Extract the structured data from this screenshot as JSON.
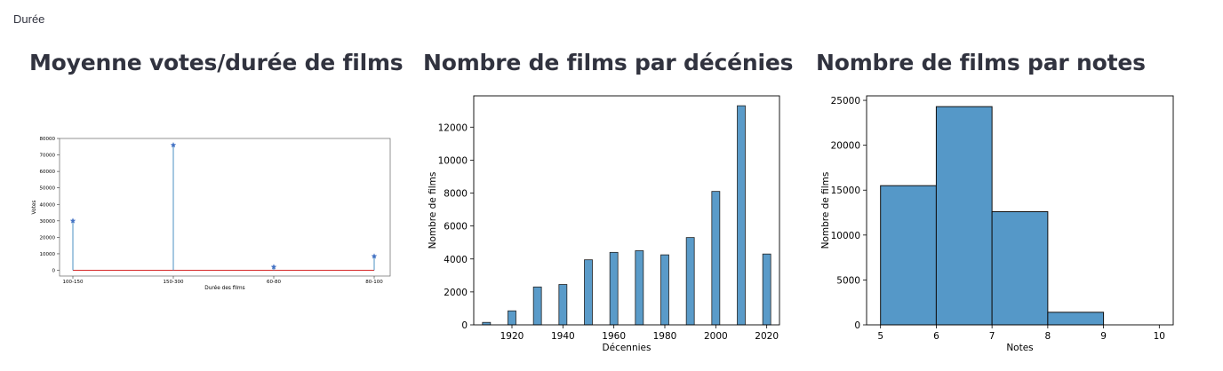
{
  "tab": {
    "label": "Durée"
  },
  "charts": [
    {
      "heading": "Moyenne votes/durée de films",
      "chart_data": {
        "type": "stem",
        "categories": [
          "100-150",
          "150-300",
          "60-80",
          "80-100"
        ],
        "values": [
          30000,
          76000,
          2000,
          8500
        ],
        "xlabel": "Durée des films",
        "ylabel": "Votes",
        "ylim": [
          -3500,
          80000
        ],
        "yticks": [
          0,
          10000,
          20000,
          30000,
          40000,
          50000,
          60000,
          70000,
          80000
        ],
        "colors": {
          "stem": "#1f77b4",
          "baseline": "#d62728",
          "marker": "#4472c4"
        }
      }
    },
    {
      "heading": "Nombre de films par décénies",
      "chart_data": {
        "type": "bar",
        "x": [
          1910,
          1920,
          1930,
          1940,
          1950,
          1960,
          1970,
          1980,
          1990,
          2000,
          2010,
          2020
        ],
        "values": [
          150,
          850,
          2300,
          2450,
          3950,
          4400,
          4500,
          4250,
          5300,
          8100,
          13300,
          4300
        ],
        "xlabel": "Décennies",
        "ylabel": "Nombre de films",
        "xlim": [
          1905,
          2025
        ],
        "ylim": [
          0,
          13900
        ],
        "xticks": [
          1920,
          1940,
          1960,
          1980,
          2000,
          2020
        ],
        "yticks": [
          0,
          2000,
          4000,
          6000,
          8000,
          10000,
          12000
        ],
        "colors": {
          "bar": "#5a9bc9"
        }
      }
    },
    {
      "heading": "Nombre de films par notes",
      "chart_data": {
        "type": "histogram",
        "bins": [
          [
            5,
            6
          ],
          [
            6,
            7
          ],
          [
            7,
            8
          ],
          [
            8,
            9
          ],
          [
            9,
            10
          ]
        ],
        "values": [
          15500,
          24300,
          12600,
          1400,
          0
        ],
        "xlabel": "Notes",
        "ylabel": "Nombre de films",
        "xlim": [
          4.75,
          10.25
        ],
        "ylim": [
          0,
          25500
        ],
        "xticks": [
          5,
          6,
          7,
          8,
          9,
          10
        ],
        "yticks": [
          0,
          5000,
          10000,
          15000,
          20000,
          25000
        ],
        "colors": {
          "bar": "#5598c8"
        }
      }
    }
  ]
}
